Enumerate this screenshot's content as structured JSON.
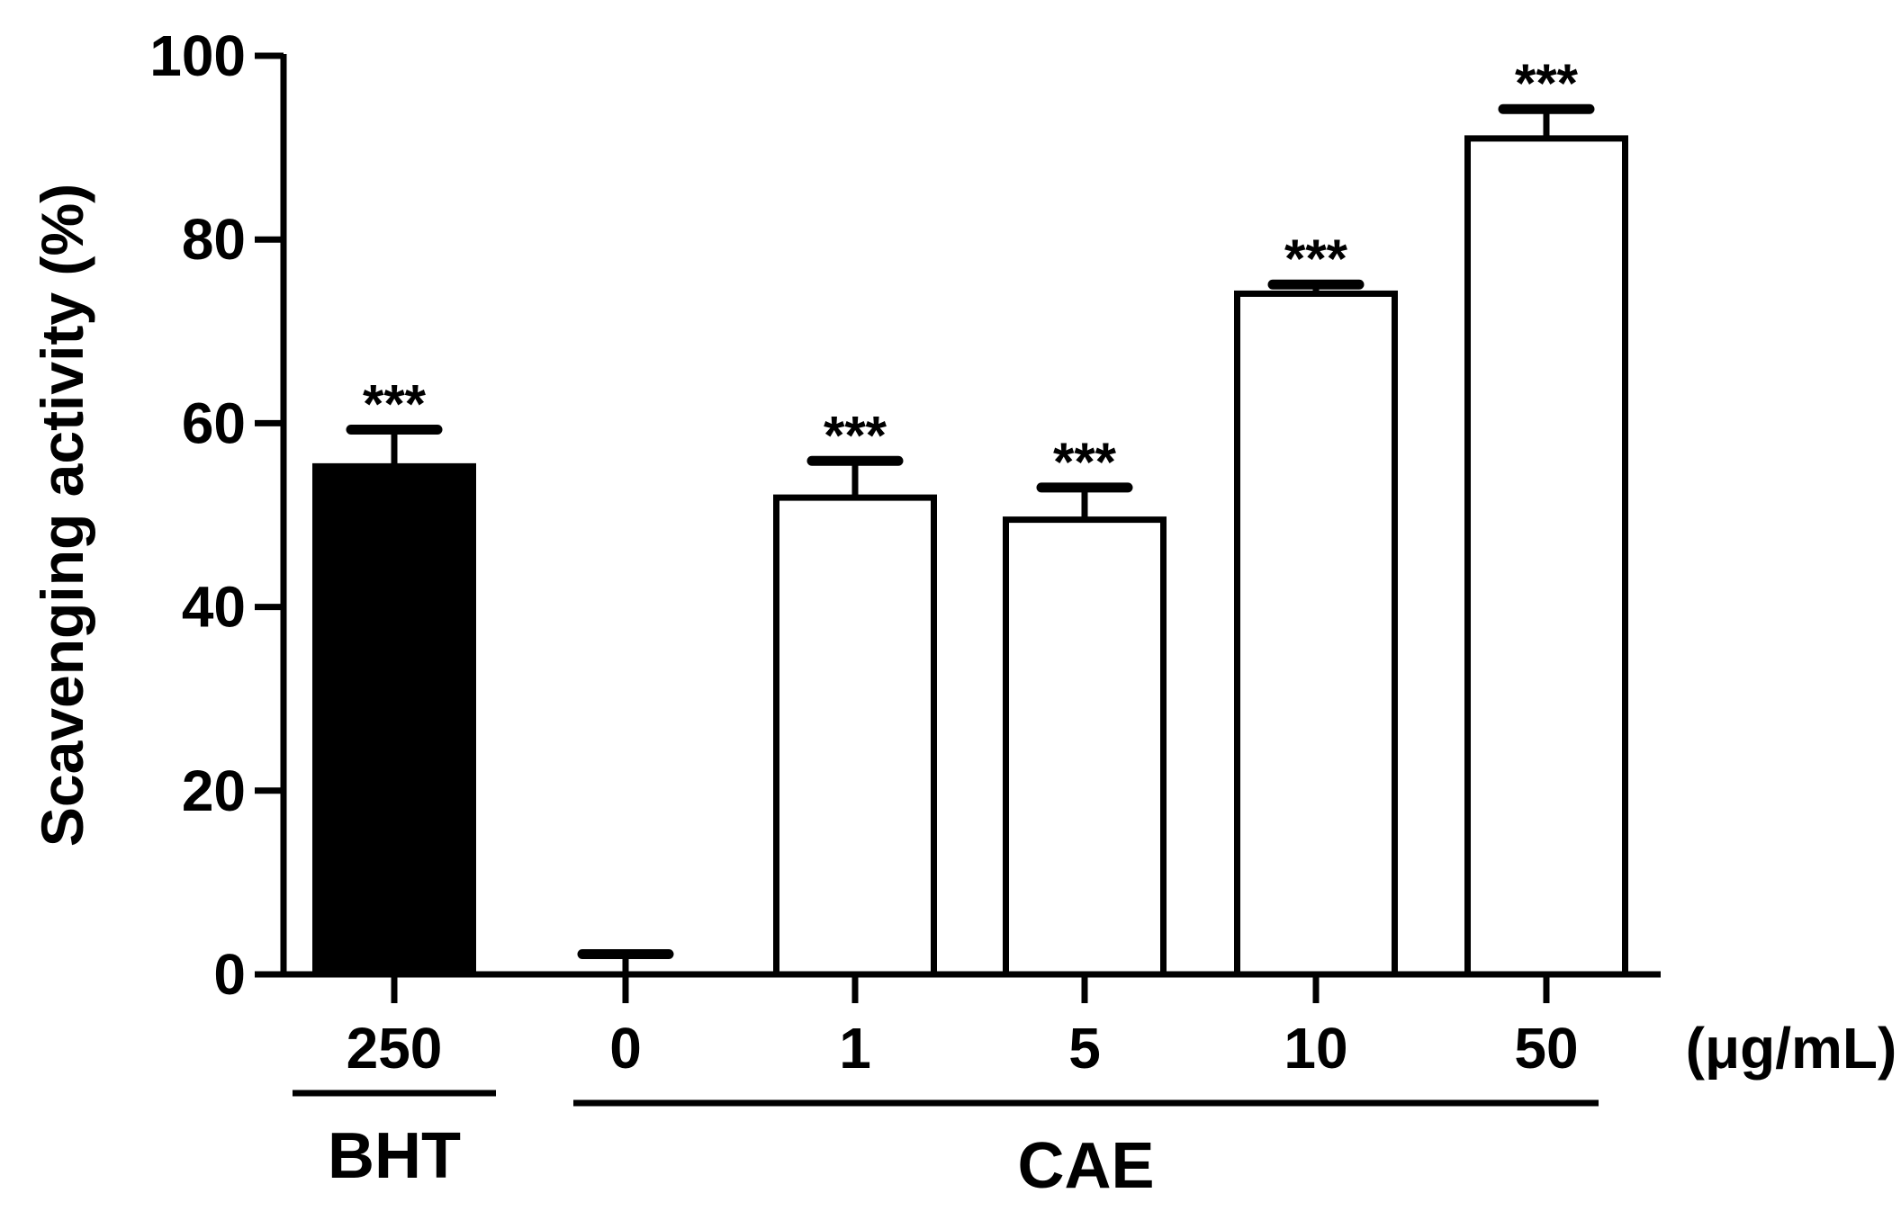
{
  "chart_data": {
    "type": "bar",
    "title": "",
    "xlabel": "",
    "ylabel": "Scavenging activity (%)",
    "unit_label": "(μg/mL)",
    "ylim": [
      0,
      100
    ],
    "yticks": [
      0,
      20,
      40,
      60,
      80,
      100
    ],
    "grid": false,
    "legend": "none",
    "categories": [
      "250",
      "0",
      "1",
      "5",
      "10",
      "50"
    ],
    "values": [
      55.3,
      0.2,
      51.9,
      49.5,
      74.1,
      91.0
    ],
    "errors": [
      4.0,
      2.0,
      4.0,
      3.5,
      1.0,
      3.2
    ],
    "significance": [
      "***",
      "",
      "***",
      "***",
      "***",
      "***"
    ],
    "fills": [
      "#000000",
      "#ffffff",
      "#ffffff",
      "#ffffff",
      "#ffffff",
      "#ffffff"
    ],
    "groups": [
      {
        "label": "BHT",
        "members": [
          0
        ]
      },
      {
        "label": "CAE",
        "members": [
          1,
          2,
          3,
          4,
          5
        ]
      }
    ]
  }
}
